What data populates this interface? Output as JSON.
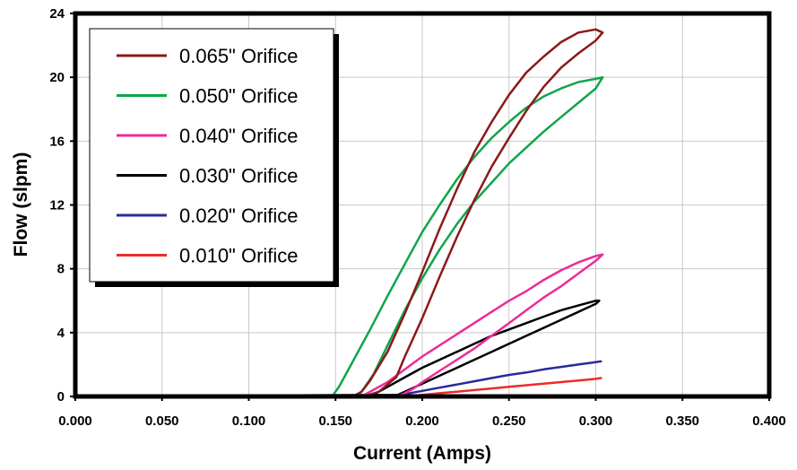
{
  "chart_data": {
    "type": "line",
    "title": "",
    "xlabel": "Current (Amps)",
    "ylabel": "Flow (slpm)",
    "xlim": [
      0,
      0.4
    ],
    "ylim": [
      0,
      24
    ],
    "x_ticks": [
      "0.000",
      "0.050",
      "0.100",
      "0.150",
      "0.200",
      "0.250",
      "0.300",
      "0.350",
      "0.400"
    ],
    "y_ticks": [
      "0",
      "4",
      "8",
      "12",
      "16",
      "20",
      "24"
    ],
    "grid": true,
    "legend_position": "top-left",
    "series": [
      {
        "name": "0.065\" Orifice",
        "color": "#8b1a1a",
        "x": [
          0,
          0.16,
          0.165,
          0.17,
          0.18,
          0.19,
          0.2,
          0.21,
          0.22,
          0.23,
          0.24,
          0.25,
          0.26,
          0.27,
          0.28,
          0.29,
          0.3,
          0.304,
          0.3,
          0.29,
          0.28,
          0.27,
          0.26,
          0.25,
          0.24,
          0.23,
          0.22,
          0.21,
          0.2,
          0.19,
          0.185,
          0.175,
          0.168,
          0.165,
          0.15,
          0
        ],
        "y": [
          0,
          0,
          0.3,
          1.0,
          2.8,
          5.2,
          7.8,
          10.5,
          13.0,
          15.3,
          17.2,
          18.9,
          20.3,
          21.3,
          22.2,
          22.8,
          23.0,
          22.8,
          22.3,
          21.5,
          20.6,
          19.4,
          17.9,
          16.2,
          14.4,
          12.3,
          10.0,
          7.5,
          4.9,
          2.5,
          1.2,
          0.3,
          0.05,
          0,
          0,
          0
        ]
      },
      {
        "name": "0.050\" Orifice",
        "color": "#10a54a",
        "x": [
          0,
          0.148,
          0.152,
          0.16,
          0.17,
          0.18,
          0.19,
          0.2,
          0.21,
          0.22,
          0.23,
          0.24,
          0.25,
          0.26,
          0.27,
          0.28,
          0.29,
          0.3,
          0.304,
          0.3,
          0.29,
          0.28,
          0.27,
          0.26,
          0.25,
          0.24,
          0.23,
          0.22,
          0.21,
          0.2,
          0.19,
          0.18,
          0.172,
          0.165,
          0.162,
          0.15,
          0
        ],
        "y": [
          0,
          0,
          0.6,
          2.2,
          4.2,
          6.3,
          8.3,
          10.3,
          12.0,
          13.6,
          15.0,
          16.2,
          17.2,
          18.1,
          18.8,
          19.3,
          19.7,
          19.9,
          20.0,
          19.3,
          18.4,
          17.5,
          16.6,
          15.6,
          14.6,
          13.4,
          12.2,
          10.8,
          9.2,
          7.4,
          5.4,
          3.2,
          1.4,
          0.3,
          0,
          0,
          0
        ]
      },
      {
        "name": "0.040\" Orifice",
        "color": "#ee2a9a",
        "x": [
          0,
          0.165,
          0.17,
          0.18,
          0.19,
          0.2,
          0.21,
          0.22,
          0.23,
          0.24,
          0.25,
          0.26,
          0.27,
          0.28,
          0.29,
          0.3,
          0.304,
          0.3,
          0.29,
          0.28,
          0.27,
          0.26,
          0.25,
          0.24,
          0.23,
          0.22,
          0.21,
          0.2,
          0.195,
          0.19,
          0.185,
          0
        ],
        "y": [
          0,
          0,
          0.3,
          0.9,
          1.7,
          2.5,
          3.2,
          3.9,
          4.6,
          5.3,
          6.0,
          6.6,
          7.3,
          7.9,
          8.4,
          8.8,
          8.9,
          8.5,
          7.7,
          6.9,
          6.2,
          5.4,
          4.6,
          3.8,
          3.0,
          2.3,
          1.6,
          0.9,
          0.5,
          0.2,
          0,
          0
        ]
      },
      {
        "name": "0.030\" Orifice",
        "color": "#000000",
        "x": [
          0,
          0.17,
          0.175,
          0.18,
          0.19,
          0.2,
          0.21,
          0.22,
          0.23,
          0.24,
          0.25,
          0.26,
          0.27,
          0.28,
          0.29,
          0.3,
          0.302,
          0.3,
          0.29,
          0.28,
          0.27,
          0.26,
          0.25,
          0.24,
          0.23,
          0.22,
          0.21,
          0.2,
          0.19,
          0.186,
          0
        ],
        "y": [
          0,
          0,
          0.3,
          0.6,
          1.2,
          1.8,
          2.3,
          2.8,
          3.3,
          3.8,
          4.2,
          4.6,
          5.0,
          5.4,
          5.7,
          6.0,
          6.0,
          5.8,
          5.3,
          4.8,
          4.3,
          3.8,
          3.3,
          2.8,
          2.3,
          1.8,
          1.3,
          0.8,
          0.3,
          0.1,
          0
        ]
      },
      {
        "name": "0.020\" Orifice",
        "color": "#2a2a9a",
        "x": [
          0,
          0.18,
          0.19,
          0.2,
          0.21,
          0.22,
          0.23,
          0.24,
          0.25,
          0.26,
          0.27,
          0.28,
          0.29,
          0.3,
          0.303
        ],
        "y": [
          0,
          0,
          0.15,
          0.35,
          0.55,
          0.75,
          0.95,
          1.15,
          1.35,
          1.5,
          1.7,
          1.85,
          2.0,
          2.15,
          2.2
        ]
      },
      {
        "name": "0.010\" Orifice",
        "color": "#ee2b2b",
        "x": [
          0,
          0.19,
          0.2,
          0.21,
          0.22,
          0.23,
          0.24,
          0.25,
          0.26,
          0.27,
          0.28,
          0.29,
          0.3,
          0.303
        ],
        "y": [
          0,
          0,
          0.1,
          0.2,
          0.3,
          0.4,
          0.5,
          0.6,
          0.7,
          0.8,
          0.9,
          1.0,
          1.1,
          1.15
        ]
      }
    ]
  }
}
